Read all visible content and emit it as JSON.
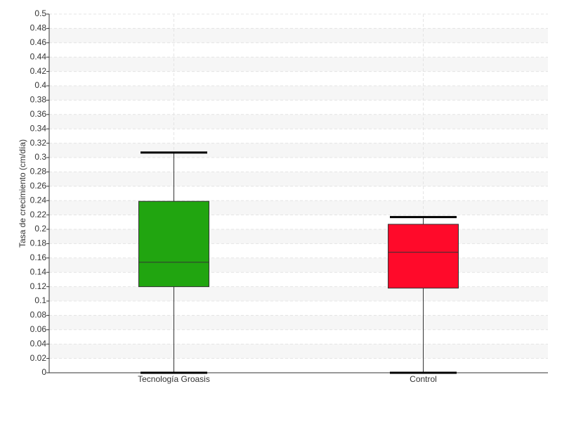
{
  "chart_data": {
    "type": "box",
    "y_label": "Tasa de crecimiento (cm/día)",
    "categories": [
      "Tecnología Groasis",
      "Control"
    ],
    "boxes": [
      {
        "min": 0,
        "q1": 0.12,
        "median": 0.154,
        "q3": 0.239,
        "max": 0.307,
        "color": "#21a510"
      },
      {
        "min": 0,
        "q1": 0.118,
        "median": 0.168,
        "q3": 0.207,
        "max": 0.217,
        "color": "#ff0a2a"
      }
    ],
    "ylim": [
      0,
      0.5
    ],
    "yticks": [
      0,
      0.02,
      0.04,
      0.06,
      0.08,
      0.1,
      0.12,
      0.14,
      0.16,
      0.18,
      0.2,
      0.22,
      0.24,
      0.26,
      0.28,
      0.3,
      0.32,
      0.34,
      0.36,
      0.38,
      0.4,
      0.42,
      0.44,
      0.46,
      0.48,
      0.5
    ],
    "grid": true
  }
}
